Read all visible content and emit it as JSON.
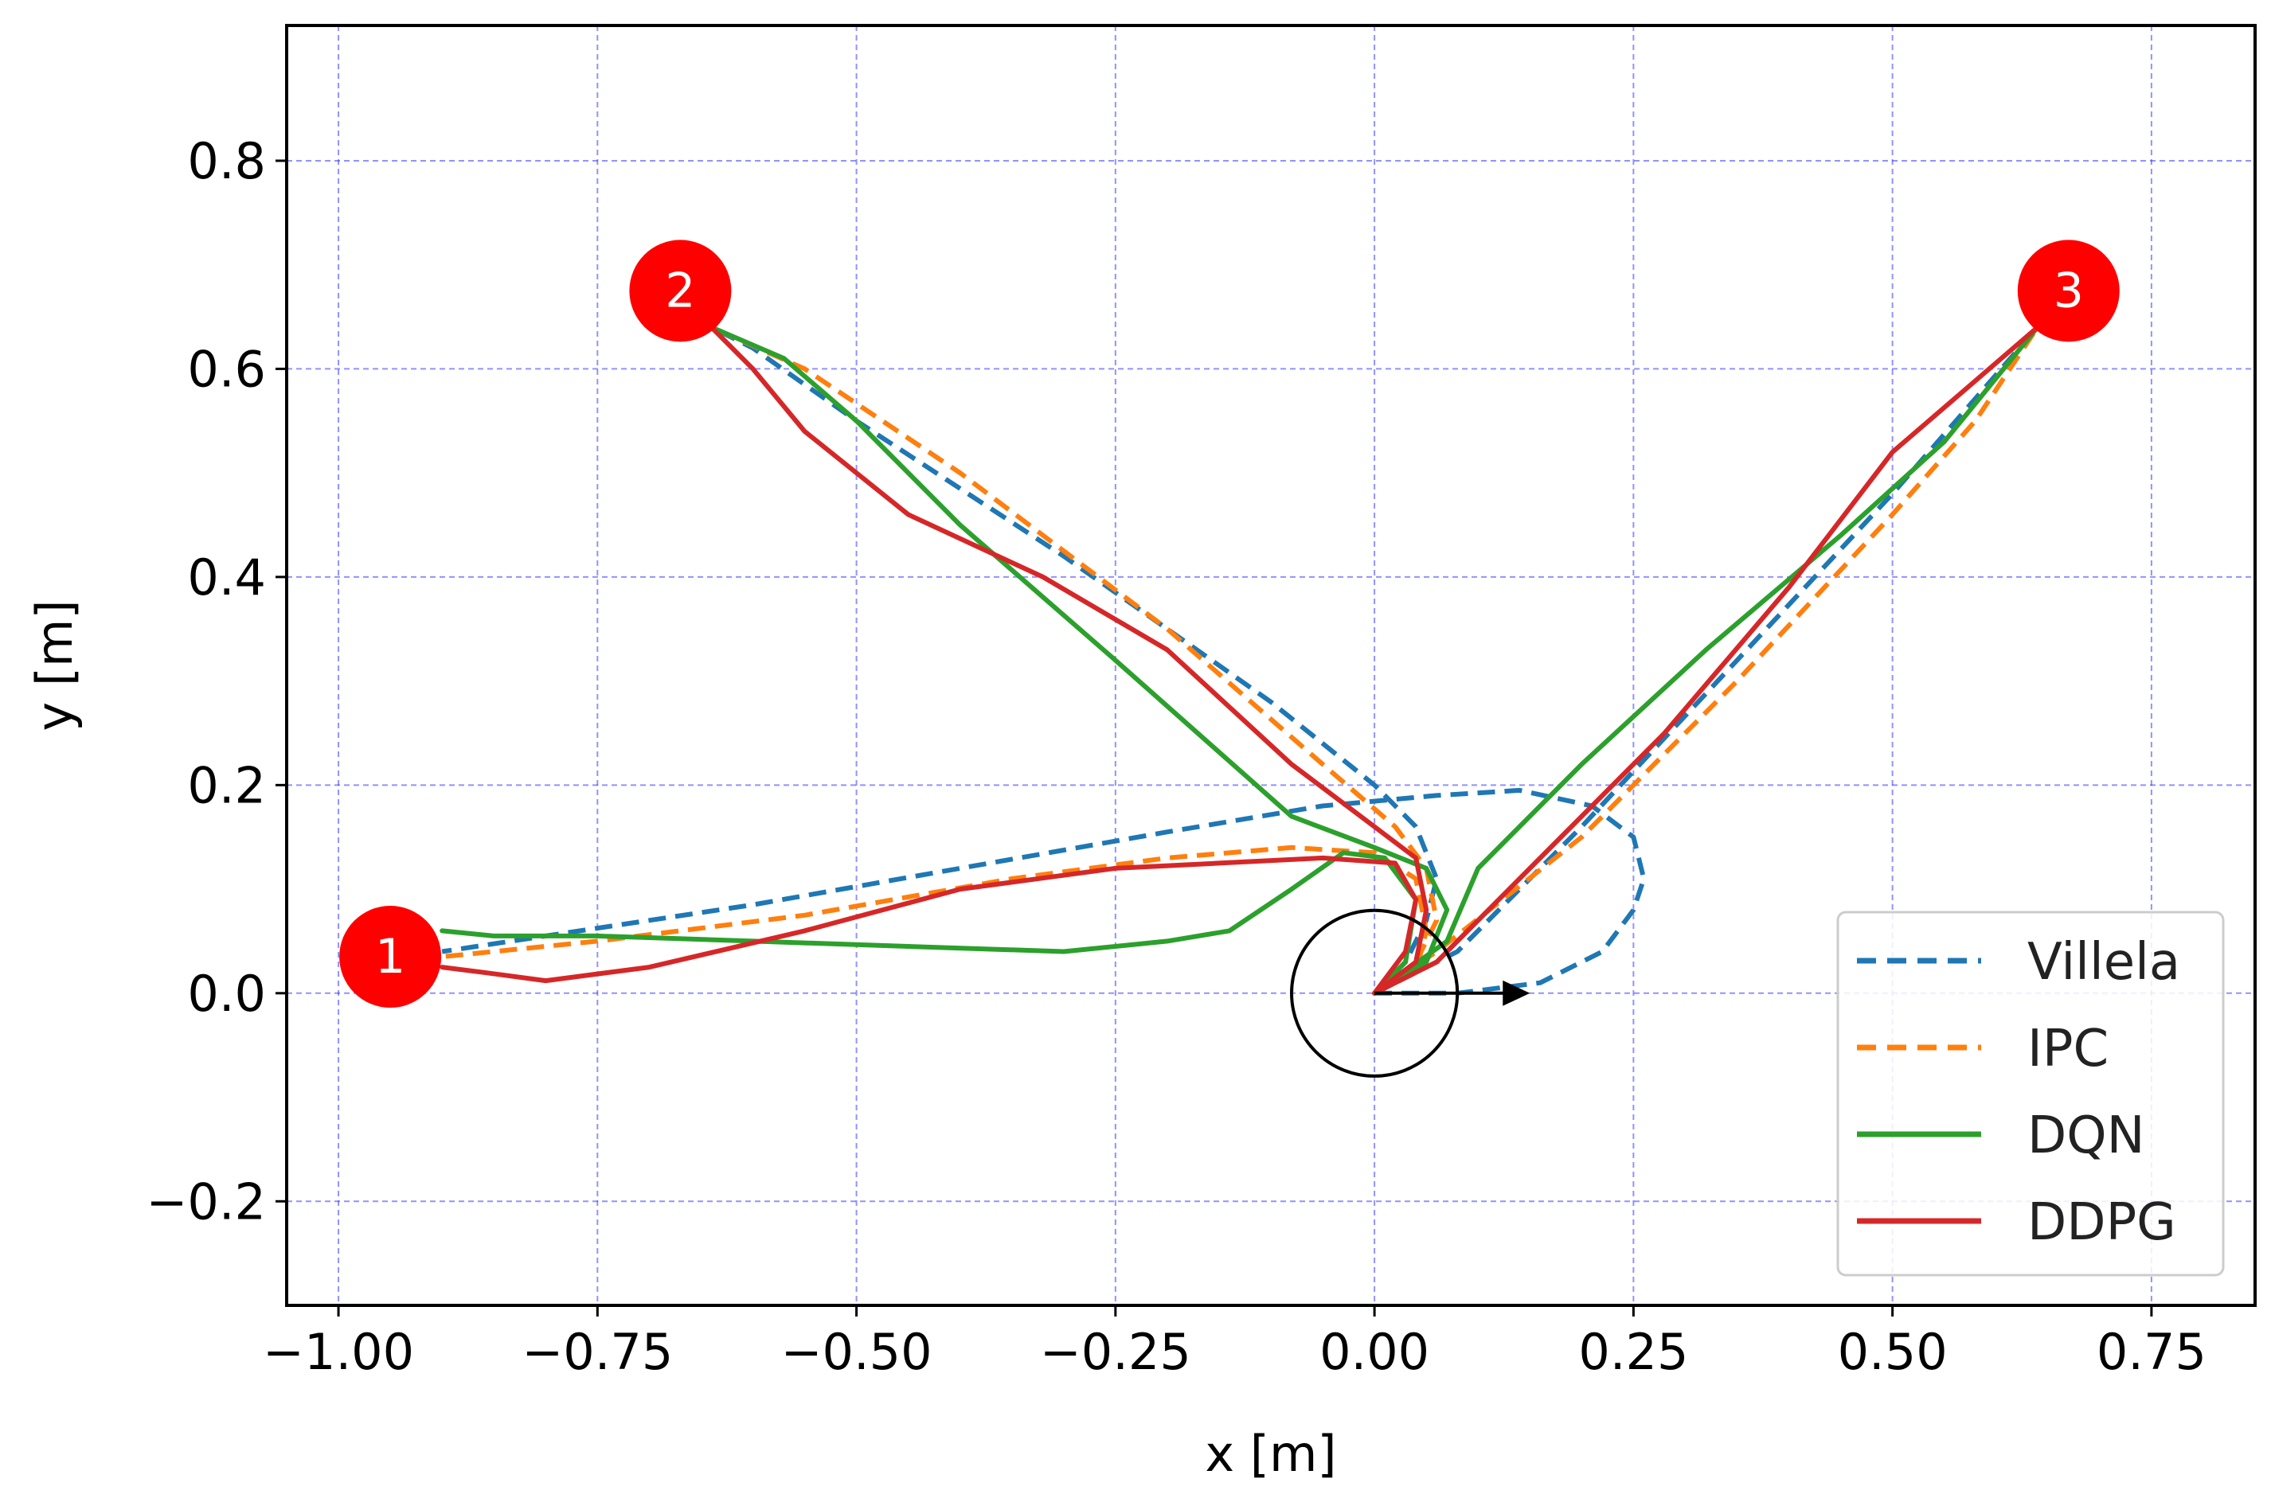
{
  "chart_data": {
    "type": "line",
    "title": "",
    "xlabel": "x [m]",
    "ylabel": "y [m]",
    "xlim": [
      -1.05,
      0.85
    ],
    "ylim": [
      -0.3,
      0.93
    ],
    "xticks": [
      -1.0,
      -0.75,
      -0.5,
      -0.25,
      0.0,
      0.25,
      0.5,
      0.75
    ],
    "yticks": [
      -0.2,
      0.0,
      0.2,
      0.4,
      0.6,
      0.8
    ],
    "xtick_labels": [
      "−1.00",
      "−0.75",
      "−0.50",
      "−0.25",
      "0.00",
      "0.25",
      "0.50",
      "0.75"
    ],
    "ytick_labels": [
      "−0.2",
      "0.0",
      "0.2",
      "0.4",
      "0.6",
      "0.8"
    ],
    "grid": true,
    "legend_position": "lower-right",
    "series": [
      {
        "name": "Villela",
        "color": "#1f77b4",
        "dash": "dashed",
        "paths": [
          [
            [
              0.0,
              0.0
            ],
            [
              0.08,
              0.0
            ],
            [
              0.16,
              0.01
            ],
            [
              0.22,
              0.04
            ],
            [
              0.25,
              0.08
            ],
            [
              0.26,
              0.11
            ],
            [
              0.25,
              0.15
            ],
            [
              0.21,
              0.18
            ],
            [
              0.14,
              0.195
            ],
            [
              0.06,
              0.19
            ],
            [
              -0.05,
              0.18
            ],
            [
              -0.2,
              0.155
            ],
            [
              -0.4,
              0.12
            ],
            [
              -0.6,
              0.085
            ],
            [
              -0.8,
              0.055
            ],
            [
              -0.9,
              0.04
            ]
          ],
          [
            [
              0.0,
              0.0
            ],
            [
              0.03,
              0.03
            ],
            [
              0.05,
              0.07
            ],
            [
              0.06,
              0.11
            ],
            [
              0.04,
              0.16
            ],
            [
              0.0,
              0.2
            ],
            [
              -0.1,
              0.28
            ],
            [
              -0.3,
              0.42
            ],
            [
              -0.5,
              0.55
            ],
            [
              -0.6,
              0.62
            ],
            [
              -0.64,
              0.64
            ]
          ],
          [
            [
              0.0,
              0.0
            ],
            [
              0.08,
              0.04
            ],
            [
              0.2,
              0.16
            ],
            [
              0.35,
              0.32
            ],
            [
              0.5,
              0.48
            ],
            [
              0.64,
              0.64
            ]
          ]
        ]
      },
      {
        "name": "IPC",
        "color": "#ff7f0e",
        "dash": "dashed",
        "paths": [
          [
            [
              0.0,
              0.0
            ],
            [
              0.04,
              0.02
            ],
            [
              0.05,
              0.06
            ],
            [
              0.04,
              0.11
            ],
            [
              0.0,
              0.135
            ],
            [
              -0.08,
              0.14
            ],
            [
              -0.2,
              0.13
            ],
            [
              -0.35,
              0.11
            ],
            [
              -0.55,
              0.075
            ],
            [
              -0.75,
              0.05
            ],
            [
              -0.9,
              0.035
            ]
          ],
          [
            [
              0.0,
              0.0
            ],
            [
              0.04,
              0.03
            ],
            [
              0.06,
              0.07
            ],
            [
              0.05,
              0.12
            ],
            [
              0.02,
              0.16
            ],
            [
              -0.05,
              0.22
            ],
            [
              -0.2,
              0.35
            ],
            [
              -0.4,
              0.5
            ],
            [
              -0.55,
              0.6
            ],
            [
              -0.64,
              0.64
            ]
          ],
          [
            [
              0.0,
              0.0
            ],
            [
              0.06,
              0.04
            ],
            [
              0.2,
              0.15
            ],
            [
              0.35,
              0.3
            ],
            [
              0.5,
              0.46
            ],
            [
              0.58,
              0.55
            ],
            [
              0.64,
              0.64
            ]
          ]
        ]
      },
      {
        "name": "DQN",
        "color": "#2ca02c",
        "dash": "solid",
        "paths": [
          [
            [
              0.0,
              0.0
            ],
            [
              0.03,
              0.03
            ],
            [
              0.04,
              0.09
            ],
            [
              0.01,
              0.13
            ],
            [
              -0.03,
              0.135
            ],
            [
              -0.08,
              0.1
            ],
            [
              -0.14,
              0.06
            ],
            [
              -0.2,
              0.05
            ],
            [
              -0.3,
              0.04
            ],
            [
              -0.45,
              0.045
            ],
            [
              -0.6,
              0.05
            ],
            [
              -0.75,
              0.055
            ],
            [
              -0.85,
              0.055
            ],
            [
              -0.9,
              0.06
            ]
          ],
          [
            [
              0.0,
              0.0
            ],
            [
              0.05,
              0.03
            ],
            [
              0.07,
              0.08
            ],
            [
              0.05,
              0.12
            ],
            [
              0.0,
              0.14
            ],
            [
              -0.08,
              0.17
            ],
            [
              -0.25,
              0.32
            ],
            [
              -0.4,
              0.45
            ],
            [
              -0.5,
              0.55
            ],
            [
              -0.57,
              0.61
            ],
            [
              -0.64,
              0.64
            ]
          ],
          [
            [
              0.0,
              0.0
            ],
            [
              0.07,
              0.05
            ],
            [
              0.1,
              0.12
            ],
            [
              0.2,
              0.22
            ],
            [
              0.32,
              0.33
            ],
            [
              0.45,
              0.44
            ],
            [
              0.55,
              0.53
            ],
            [
              0.64,
              0.64
            ]
          ]
        ]
      },
      {
        "name": "DDPG",
        "color": "#d62728",
        "dash": "solid",
        "paths": [
          [
            [
              0.0,
              0.0
            ],
            [
              0.03,
              0.04
            ],
            [
              0.04,
              0.09
            ],
            [
              0.02,
              0.125
            ],
            [
              -0.05,
              0.13
            ],
            [
              -0.15,
              0.125
            ],
            [
              -0.25,
              0.12
            ],
            [
              -0.4,
              0.1
            ],
            [
              -0.55,
              0.06
            ],
            [
              -0.7,
              0.025
            ],
            [
              -0.8,
              0.012
            ],
            [
              -0.86,
              0.02
            ],
            [
              -0.9,
              0.025
            ]
          ],
          [
            [
              0.0,
              0.0
            ],
            [
              0.04,
              0.03
            ],
            [
              0.05,
              0.08
            ],
            [
              0.04,
              0.13
            ],
            [
              0.0,
              0.16
            ],
            [
              -0.08,
              0.22
            ],
            [
              -0.2,
              0.33
            ],
            [
              -0.32,
              0.4
            ],
            [
              -0.45,
              0.46
            ],
            [
              -0.55,
              0.54
            ],
            [
              -0.6,
              0.6
            ],
            [
              -0.64,
              0.64
            ]
          ],
          [
            [
              0.0,
              0.0
            ],
            [
              0.06,
              0.03
            ],
            [
              0.15,
              0.12
            ],
            [
              0.28,
              0.25
            ],
            [
              0.4,
              0.39
            ],
            [
              0.5,
              0.52
            ],
            [
              0.57,
              0.58
            ],
            [
              0.64,
              0.64
            ]
          ]
        ]
      }
    ],
    "targets": [
      {
        "label": "1",
        "x": -0.95,
        "y": 0.035,
        "color": "#ff0000"
      },
      {
        "label": "2",
        "x": -0.67,
        "y": 0.675,
        "color": "#ff0000"
      },
      {
        "label": "3",
        "x": 0.67,
        "y": 0.675,
        "color": "#ff0000"
      }
    ],
    "robot": {
      "x": 0.0,
      "y": 0.0,
      "radius": 0.08,
      "heading_end": [
        0.15,
        0.0
      ],
      "color": "#000000"
    }
  }
}
